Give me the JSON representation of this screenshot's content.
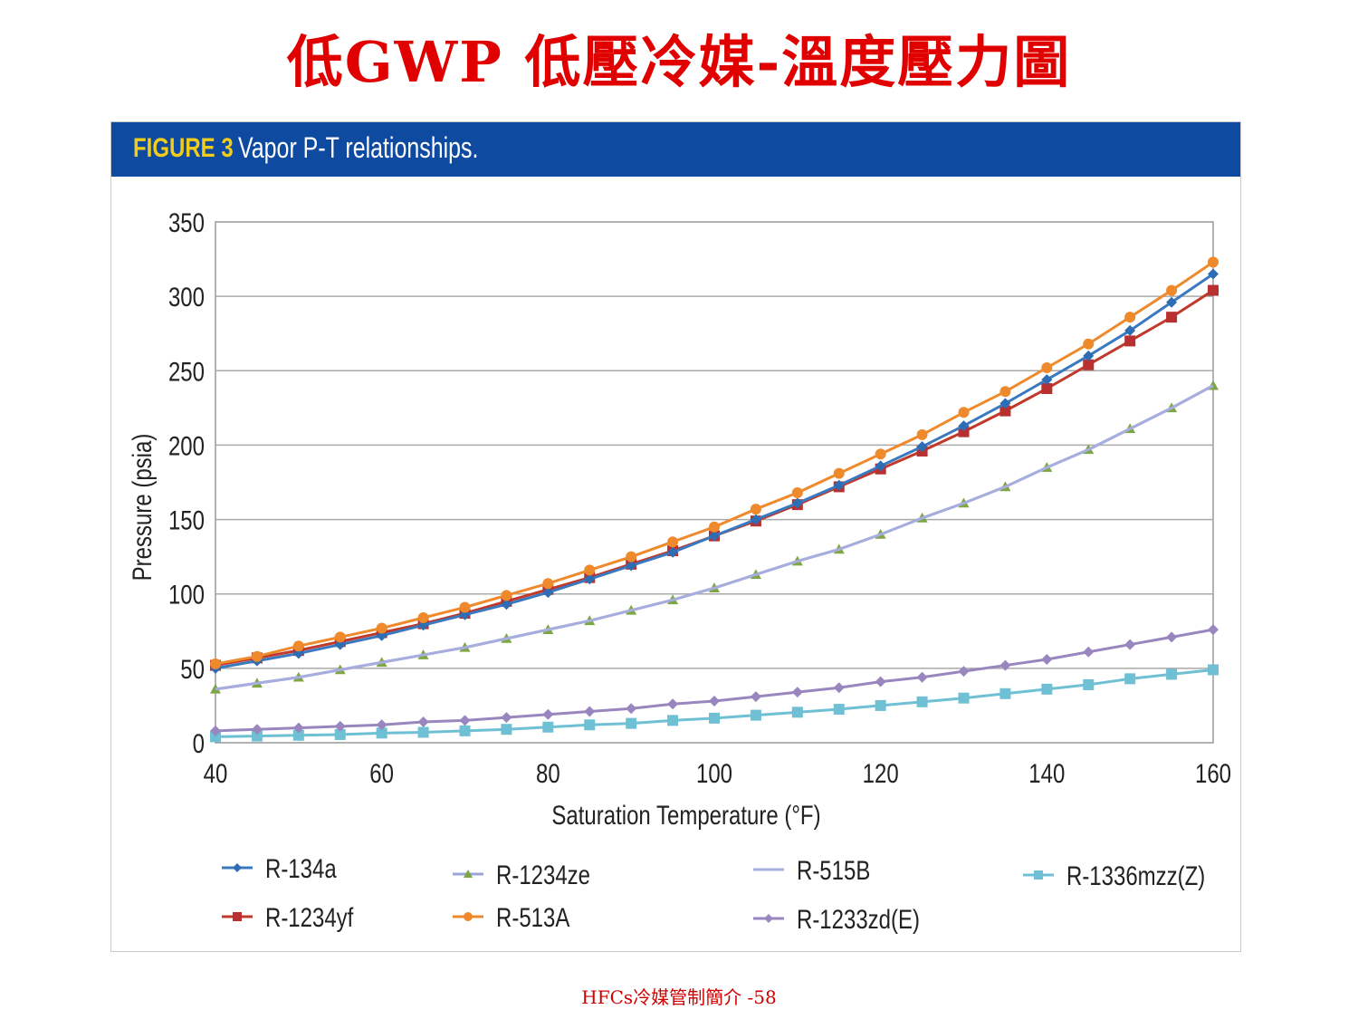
{
  "title": "低GWP 低壓冷媒-溫度壓力圖",
  "figure": {
    "label": "FIGURE 3",
    "caption": "Vapor P-T relationships."
  },
  "footer": "HFCs冷媒管制簡介 -58",
  "chart_data": {
    "type": "line",
    "title": "Vapor P-T relationships.",
    "xlabel": "Saturation Temperature (°F)",
    "ylabel": "Pressure (psia)",
    "xlim": [
      40,
      160
    ],
    "ylim": [
      0,
      350
    ],
    "xticks": [
      40,
      60,
      80,
      100,
      120,
      140,
      160
    ],
    "yticks": [
      0,
      50,
      100,
      150,
      200,
      250,
      300,
      350
    ],
    "grid": "horizontal",
    "legend_position": "bottom",
    "x": [
      40,
      45,
      50,
      55,
      60,
      65,
      70,
      75,
      80,
      85,
      90,
      95,
      100,
      105,
      110,
      115,
      120,
      125,
      130,
      135,
      140,
      145,
      150,
      155,
      160
    ],
    "series": [
      {
        "name": "R-134a",
        "color": "#2e6db4",
        "line": "#3a78c0",
        "marker": "diamond",
        "values": [
          50,
          55,
          60,
          66,
          72,
          79,
          86,
          93,
          101,
          110,
          119,
          128,
          139,
          150,
          161,
          173,
          186,
          199,
          213,
          228,
          244,
          260,
          277,
          296,
          315
        ]
      },
      {
        "name": "R-1234yf",
        "color": "#b8302f",
        "line": "#c0392b",
        "marker": "square",
        "values": [
          52,
          57,
          62,
          68,
          74,
          80,
          87,
          95,
          103,
          111,
          120,
          129,
          139,
          149,
          160,
          172,
          184,
          196,
          209,
          223,
          238,
          254,
          270,
          286,
          304
        ]
      },
      {
        "name": "R-1234ze",
        "color": "#7fa645",
        "line": "#9aa6d8",
        "marker": "triangle",
        "values": [
          36,
          40,
          44,
          49,
          54,
          59,
          64,
          70,
          76,
          82,
          89,
          96,
          104,
          113,
          122,
          130,
          140,
          151,
          161,
          172,
          185,
          197,
          211,
          225,
          240
        ]
      },
      {
        "name": "R-513A",
        "color": "#ef8a2c",
        "line": "#ef8a2c",
        "marker": "circle",
        "values": [
          53,
          58,
          65,
          71,
          77,
          84,
          91,
          99,
          107,
          116,
          125,
          135,
          145,
          157,
          168,
          181,
          194,
          207,
          222,
          236,
          252,
          268,
          286,
          304,
          323
        ]
      },
      {
        "name": "R-515B",
        "color": "#a7addd",
        "line": "#a7addd",
        "marker": "none",
        "values": [
          36,
          40,
          44,
          49,
          54,
          59,
          64,
          70,
          76,
          82,
          89,
          96,
          104,
          113,
          122,
          130,
          140,
          151,
          161,
          172,
          185,
          197,
          211,
          225,
          240
        ]
      },
      {
        "name": "R-1233zd(E)",
        "color": "#9a86bf",
        "line": "#9a86bf",
        "marker": "diamond",
        "values": [
          8,
          9,
          10,
          11,
          12,
          14,
          15,
          17,
          19,
          21,
          23,
          26,
          28,
          31,
          34,
          37,
          41,
          44,
          48,
          52,
          56,
          61,
          66,
          71,
          76
        ]
      },
      {
        "name": "R-1336mzz(Z)",
        "color": "#6fc0d4",
        "line": "#6fc0d4",
        "marker": "square",
        "values": [
          4,
          4.5,
          5,
          5.5,
          6.5,
          7,
          8,
          9,
          10.5,
          12,
          13,
          15,
          16.5,
          18.5,
          20.5,
          22.5,
          25,
          27.5,
          30,
          33,
          36,
          39,
          43,
          46,
          49
        ]
      }
    ]
  }
}
